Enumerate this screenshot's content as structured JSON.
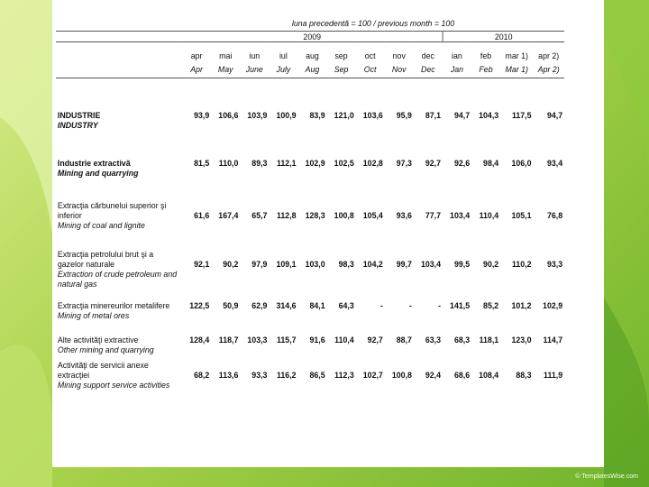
{
  "header": {
    "note": "luna precedentă = 100 / previous month = 100",
    "year_2009": "2009",
    "year_2010": "2010"
  },
  "months": [
    {
      "ro": "apr",
      "en": "Apr"
    },
    {
      "ro": "mai",
      "en": "May"
    },
    {
      "ro": "iun",
      "en": "June"
    },
    {
      "ro": "iul",
      "en": "July"
    },
    {
      "ro": "aug",
      "en": "Aug"
    },
    {
      "ro": "sep",
      "en": "Sep"
    },
    {
      "ro": "oct",
      "en": "Oct"
    },
    {
      "ro": "nov",
      "en": "Nov"
    },
    {
      "ro": "dec",
      "en": "Dec"
    },
    {
      "ro": "ian",
      "en": "Jan"
    },
    {
      "ro": "feb",
      "en": "Feb"
    },
    {
      "ro": "mar 1)",
      "en": "Mar 1)"
    },
    {
      "ro": "apr 2)",
      "en": "Apr 2)"
    }
  ],
  "rows": [
    {
      "ro": "INDUSTRIE",
      "en": "INDUSTRY",
      "values": [
        "93,9",
        "106,6",
        "103,9",
        "100,9",
        "83,9",
        "121,0",
        "103,6",
        "95,9",
        "87,1",
        "94,7",
        "104,3",
        "117,5",
        "94,7"
      ]
    },
    {
      "ro": "Industrie extractivă",
      "en": "Mining and quarrying",
      "values": [
        "81,5",
        "110,0",
        "89,3",
        "112,1",
        "102,9",
        "102,5",
        "102,8",
        "97,3",
        "92,7",
        "92,6",
        "98,4",
        "106,0",
        "93,4"
      ]
    },
    {
      "ro": "Extracţia cărbunelui superior şi inferior",
      "en": "Mining of coal and lignite",
      "values": [
        "61,6",
        "167,4",
        "65,7",
        "112,8",
        "128,3",
        "100,8",
        "105,4",
        "93,6",
        "77,7",
        "103,4",
        "110,4",
        "105,1",
        "76,8"
      ]
    },
    {
      "ro": "Extracţia petrolului brut şi a gazelor naturale",
      "en": "Extraction of crude petroleum and natural gas",
      "values": [
        "92,1",
        "90,2",
        "97,9",
        "109,1",
        "103,0",
        "98,3",
        "104,2",
        "99,7",
        "103,4",
        "99,5",
        "90,2",
        "110,2",
        "93,3"
      ]
    },
    {
      "ro": "Extracţia minereurilor metalifere",
      "en": "Mining of metal ores",
      "values": [
        "122,5",
        "50,9",
        "62,9",
        "314,6",
        "84,1",
        "64,3",
        "-",
        "-",
        "-",
        "141,5",
        "85,2",
        "101,2",
        "102,9"
      ]
    },
    {
      "ro": "Alte activităţi extractive",
      "en": "Other mining and quarrying",
      "values": [
        "128,4",
        "118,7",
        "103,3",
        "115,7",
        "91,6",
        "110,4",
        "92,7",
        "88,7",
        "63,3",
        "68,3",
        "118,1",
        "123,0",
        "114,7"
      ]
    },
    {
      "ro": "Activităţi de servicii anexe extracţiei",
      "en": "Mining support service activities",
      "values": [
        "68,2",
        "113,6",
        "93,3",
        "116,2",
        "86,5",
        "112,3",
        "102,7",
        "100,8",
        "92,4",
        "68,6",
        "108,4",
        "88,3",
        "111,9"
      ]
    }
  ],
  "watermark": "© TemplatesWise.com"
}
